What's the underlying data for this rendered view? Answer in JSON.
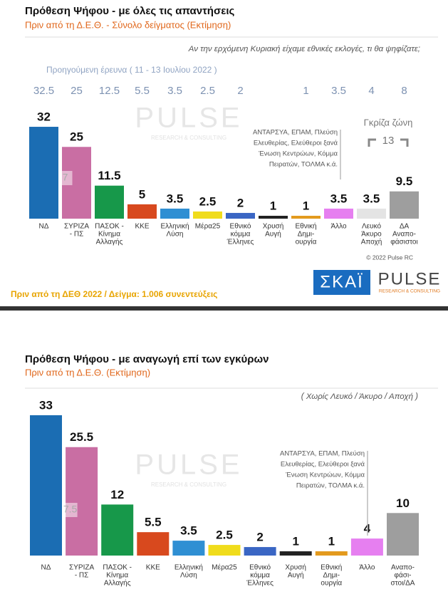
{
  "chart_data": [
    {
      "type": "bar",
      "title": "Πρόθεση Ψήφου - με όλες τις απαντήσεις",
      "subtitle": "Πριν από τη Δ.Ε.Θ.  -  Σύνολο δείγματος   (Εκτίμηση)",
      "question": "Αν την ερχόμενη Κυριακή είχαμε εθνικές εκλογές, τι θα ψηφίζατε;",
      "previous_label": "Προηγούμενη έρευνα  ( 11 - 13 Ιουλίου  2022 )",
      "previous_values": [
        32.5,
        25,
        12.5,
        5.5,
        3.5,
        2.5,
        2,
        null,
        1,
        3.5,
        4,
        8
      ],
      "categories": [
        [
          "ΝΔ"
        ],
        [
          "ΣΥΡΙΖΑ",
          "- ΠΣ"
        ],
        [
          "ΠΑΣΟΚ -",
          "Κίνημα",
          "Αλλαγής"
        ],
        [
          "ΚΚΕ"
        ],
        [
          "Ελληνική",
          "Λύση"
        ],
        [
          "Μέρα25"
        ],
        [
          "Εθνικό",
          "κόμμα",
          "Έλληνες"
        ],
        [
          "Χρυσή",
          "Αυγή"
        ],
        [
          "Εθνική",
          "Δημι-",
          "ουργία"
        ],
        [
          "Άλλο"
        ],
        [
          "Λευκό",
          "Άκυρο",
          "Αποχή"
        ],
        [
          "ΔΑ",
          "Αναπο-",
          "φάσιστοι"
        ]
      ],
      "values": [
        32,
        25,
        11.5,
        5,
        3.5,
        2.5,
        2,
        1,
        1,
        3.5,
        3.5,
        9.5
      ],
      "colors": [
        "#1b6db3",
        "#c96ea3",
        "#17984a",
        "#d8491e",
        "#2f8fd3",
        "#f0dc1c",
        "#3a66c4",
        "#222222",
        "#e39a1e",
        "#e67ff0",
        "#e4e4e4",
        "#9e9e9e"
      ],
      "bar_note": 7,
      "gray_zone_label": "Γκρίζα ζώνη",
      "gray_zone_value": 13,
      "others_note": [
        "ΑΝΤΑΡΣΥΑ, ΕΠΑΜ, Πλεύση",
        "Ελευθερίας, Ελεύθεροι ξανά",
        "Ένωση Κεντρώων, Κόμμα",
        "Πειρατών, ΤΟΛΜΑ  κ.ά."
      ]
    },
    {
      "type": "bar",
      "title": "Πρόθεση Ψήφου - με αναγωγή επί των εγκύρων",
      "subtitle": "Πριν από τη Δ.Ε.Θ.   (Εκτίμηση)",
      "question": "( Χωρίς Λευκό / Άκυρο / Αποχή )",
      "categories": [
        [
          "ΝΔ"
        ],
        [
          "ΣΥΡΙΖΑ",
          "- ΠΣ"
        ],
        [
          "ΠΑΣΟΚ -",
          "Κίνημα",
          "Αλλαγής"
        ],
        [
          "ΚΚΕ"
        ],
        [
          "Ελληνική",
          "Λύση"
        ],
        [
          "Μέρα25"
        ],
        [
          "Εθνικό",
          "κόμμα",
          "Έλληνες"
        ],
        [
          "Χρυσή",
          "Αυγή"
        ],
        [
          "Εθνική",
          "Δημι-",
          "ουργία"
        ],
        [
          "Άλλο"
        ],
        [
          "Αναπο-",
          "φάσι-",
          "στοι/ΔΑ"
        ]
      ],
      "values": [
        33,
        25.5,
        12,
        5.5,
        3.5,
        2.5,
        2,
        1,
        1,
        4,
        10
      ],
      "colors": [
        "#1b6db3",
        "#c96ea3",
        "#17984a",
        "#d8491e",
        "#2f8fd3",
        "#f0dc1c",
        "#3a66c4",
        "#222222",
        "#e39a1e",
        "#e67ff0",
        "#9e9e9e"
      ],
      "bar_note": 7.5,
      "others_note": [
        "ΑΝΤΑΡΣΥΑ, ΕΠΑΜ, Πλεύση",
        "Ελευθερίας, Ελεύθεροι ξανά",
        "Ένωση Κεντρώων, Κόμμα",
        "Πειρατών, ΤΟΛΜΑ  κ.ά."
      ]
    }
  ],
  "branding": {
    "watermark": "PULSE",
    "watermark_sub": "RESEARCH & CONSULTING",
    "channel": "ΣΚΑΪ",
    "copyright": "© 2022 Pulse RC",
    "footer": "Πριν από τη ΔΕΘ  2022  /  Δείγμα:  1.006 συνεντεύξεις"
  }
}
